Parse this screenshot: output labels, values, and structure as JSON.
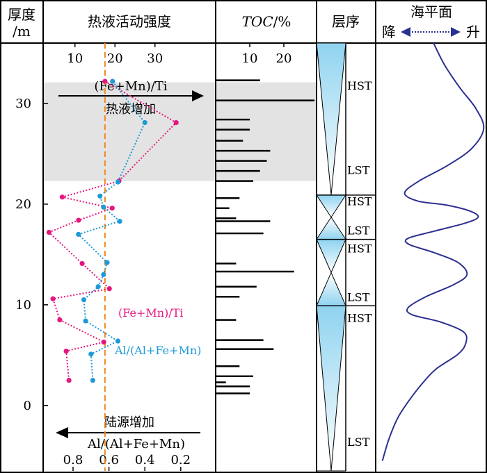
{
  "chart_data": {
    "type": "composite",
    "header": {
      "thickness_label_line1": "厚度",
      "thickness_label_line2": "/m",
      "hydro_label": "热液活动强度",
      "toc_label": "TOC/%",
      "toc_label_italic": "TOC",
      "toc_label_unit": "/%",
      "sequence_label": "层序",
      "sealevel_label": "海平面",
      "sealevel_fall": "降",
      "sealevel_rise": "升"
    },
    "thickness_axis": {
      "range": [
        -6.5,
        36
      ],
      "ticks": [
        0,
        10,
        20,
        30
      ]
    },
    "top_axis": {
      "ticks": [
        10,
        20,
        30
      ],
      "annotation_ratio": "(Fe+Mn)/Ti",
      "annotation_text": "热液增加"
    },
    "bottom_axis": {
      "ticks": [
        "0.8",
        "0.6",
        "0.4",
        "0.2"
      ],
      "annotation_text": "陆源增加",
      "annotation_ratio": "Al/(Al+Fe+Mn)"
    },
    "highlight_band": [
      22.3,
      32.1
    ],
    "threshold_value": 17.5,
    "series": [
      {
        "name": "(Fe+Mn)/Ti",
        "color": "#e5167f",
        "points": [
          [
            32.2,
            17.5
          ],
          [
            28.1,
            35.3
          ],
          [
            22.3,
            21
          ],
          [
            20.7,
            6.8
          ],
          [
            19.6,
            19.3
          ],
          [
            18.4,
            10.9
          ],
          [
            17.2,
            3.5
          ],
          [
            14.1,
            11.8
          ],
          [
            11.6,
            18.6
          ],
          [
            10.6,
            4.5
          ],
          [
            8.5,
            6.2
          ],
          [
            6.3,
            17.2
          ],
          [
            5.4,
            7.8
          ],
          [
            2.5,
            8.5
          ]
        ]
      },
      {
        "name": "Al/(Al+Fe+Mn)",
        "color": "#1e9bd7",
        "points": [
          [
            32.2,
            0.58
          ],
          [
            28.1,
            0.4
          ],
          [
            22.2,
            0.55
          ],
          [
            20.8,
            0.65
          ],
          [
            19.7,
            0.63
          ],
          [
            18.3,
            0.54
          ],
          [
            17.0,
            0.77
          ],
          [
            14.2,
            0.61
          ],
          [
            13.0,
            0.63
          ],
          [
            11.8,
            0.66
          ],
          [
            10.5,
            0.74
          ],
          [
            8.4,
            0.73
          ],
          [
            6.4,
            0.55
          ],
          [
            5.1,
            0.7
          ],
          [
            2.5,
            0.69
          ]
        ]
      }
    ],
    "series_label_positions": [
      "(Fe+Mn)/Ti",
      "Al/(Al+Fe+Mn)"
    ],
    "toc": {
      "ticks": [
        10,
        20
      ],
      "bars": [
        {
          "depth": 32.3,
          "value": 13
        },
        {
          "depth": 30.3,
          "value": 29
        },
        {
          "depth": 28.4,
          "value": 10
        },
        {
          "depth": 27.4,
          "value": 10
        },
        {
          "depth": 26.3,
          "value": 8
        },
        {
          "depth": 25.3,
          "value": 16
        },
        {
          "depth": 24.3,
          "value": 15
        },
        {
          "depth": 23.3,
          "value": 13
        },
        {
          "depth": 22.3,
          "value": 11
        },
        {
          "depth": 20.6,
          "value": 7
        },
        {
          "depth": 19.6,
          "value": 4
        },
        {
          "depth": 18.6,
          "value": 6
        },
        {
          "depth": 18.3,
          "value": 16
        },
        {
          "depth": 17.1,
          "value": 14
        },
        {
          "depth": 14.1,
          "value": 6
        },
        {
          "depth": 13.3,
          "value": 23
        },
        {
          "depth": 11.8,
          "value": 12
        },
        {
          "depth": 10.8,
          "value": 7
        },
        {
          "depth": 8.5,
          "value": 6
        },
        {
          "depth": 6.5,
          "value": 14
        },
        {
          "depth": 5.6,
          "value": 17
        },
        {
          "depth": 3.9,
          "value": 7
        },
        {
          "depth": 2.9,
          "value": 11
        },
        {
          "depth": 2.3,
          "value": 3
        },
        {
          "depth": 1.9,
          "value": 10
        },
        {
          "depth": 1.2,
          "value": 10
        }
      ]
    },
    "sequence": {
      "boundaries": [
        20.9,
        16.5,
        9.9
      ],
      "fill_color": "#8fd3f0",
      "units": [
        {
          "top": 36,
          "max": 20.9,
          "bottom": 20.9,
          "hst": "HST",
          "lst": "LST",
          "hst_depth": 31.8,
          "lst_depth": 23.4
        },
        {
          "top": 20.9,
          "max": 18.7,
          "bottom": 16.5,
          "hst": "HST",
          "lst": "LST",
          "hst_depth": 20.3,
          "lst_depth": 17.4
        },
        {
          "top": 16.5,
          "max": 13.2,
          "bottom": 9.9,
          "hst": "HST",
          "lst": "LST",
          "hst_depth": 15.6,
          "lst_depth": 10.8
        },
        {
          "top": 9.9,
          "max": -6.5,
          "bottom": -6.5,
          "hst": "HST",
          "lst": "LST",
          "hst_depth": 8.7,
          "lst_depth": -3.6
        }
      ]
    },
    "sea_level": {
      "color": "#2b2f8f",
      "curve": [
        [
          36.0,
          0.52
        ],
        [
          33.8,
          0.62
        ],
        [
          31.5,
          0.76
        ],
        [
          29.5,
          0.9
        ],
        [
          27.5,
          0.97
        ],
        [
          25.5,
          0.86
        ],
        [
          23.8,
          0.64
        ],
        [
          22.3,
          0.39
        ],
        [
          21.1,
          0.26
        ],
        [
          20.3,
          0.38
        ],
        [
          19.9,
          0.64
        ],
        [
          19.3,
          0.85
        ],
        [
          18.7,
          0.92
        ],
        [
          18.1,
          0.8
        ],
        [
          17.3,
          0.52
        ],
        [
          16.6,
          0.29
        ],
        [
          16.0,
          0.3
        ],
        [
          15.2,
          0.52
        ],
        [
          14.2,
          0.74
        ],
        [
          13.0,
          0.82
        ],
        [
          12.0,
          0.7
        ],
        [
          10.8,
          0.45
        ],
        [
          9.7,
          0.29
        ],
        [
          9.0,
          0.33
        ],
        [
          8.3,
          0.58
        ],
        [
          7.3,
          0.79
        ],
        [
          6.2,
          0.81
        ],
        [
          5.1,
          0.74
        ],
        [
          3.6,
          0.54
        ],
        [
          2.2,
          0.42
        ],
        [
          0.5,
          0.3
        ],
        [
          -1.2,
          0.2
        ],
        [
          -3.3,
          0.12
        ],
        [
          -5.5,
          0.06
        ]
      ]
    }
  }
}
